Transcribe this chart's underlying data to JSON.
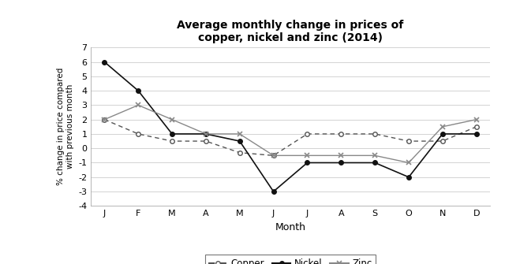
{
  "title": "Average monthly change in prices of\ncopper, nickel and zinc (2014)",
  "xlabel": "Month",
  "ylabel": "% change in price compared\nwith previous month",
  "months": [
    "J",
    "F",
    "M",
    "A",
    "M",
    "J",
    "J",
    "A",
    "S",
    "O",
    "N",
    "D"
  ],
  "copper": [
    2,
    1,
    0.5,
    0.5,
    -0.3,
    -0.5,
    1,
    1,
    1,
    0.5,
    0.5,
    1.5
  ],
  "nickel": [
    6,
    4,
    1,
    1,
    0.5,
    -3,
    -1,
    -1,
    -1,
    -2,
    1,
    1
  ],
  "zinc": [
    2,
    3,
    2,
    1,
    1,
    -0.5,
    -0.5,
    -0.5,
    -0.5,
    -1,
    1.5,
    2
  ],
  "ylim": [
    -4,
    7
  ],
  "yticks": [
    -4,
    -3,
    -2,
    -1,
    0,
    1,
    2,
    3,
    4,
    5,
    6,
    7
  ],
  "background_color": "#ffffff",
  "line_color_copper": "#555555",
  "line_color_nickel": "#111111",
  "line_color_zinc": "#888888",
  "grid_color": "#cccccc"
}
